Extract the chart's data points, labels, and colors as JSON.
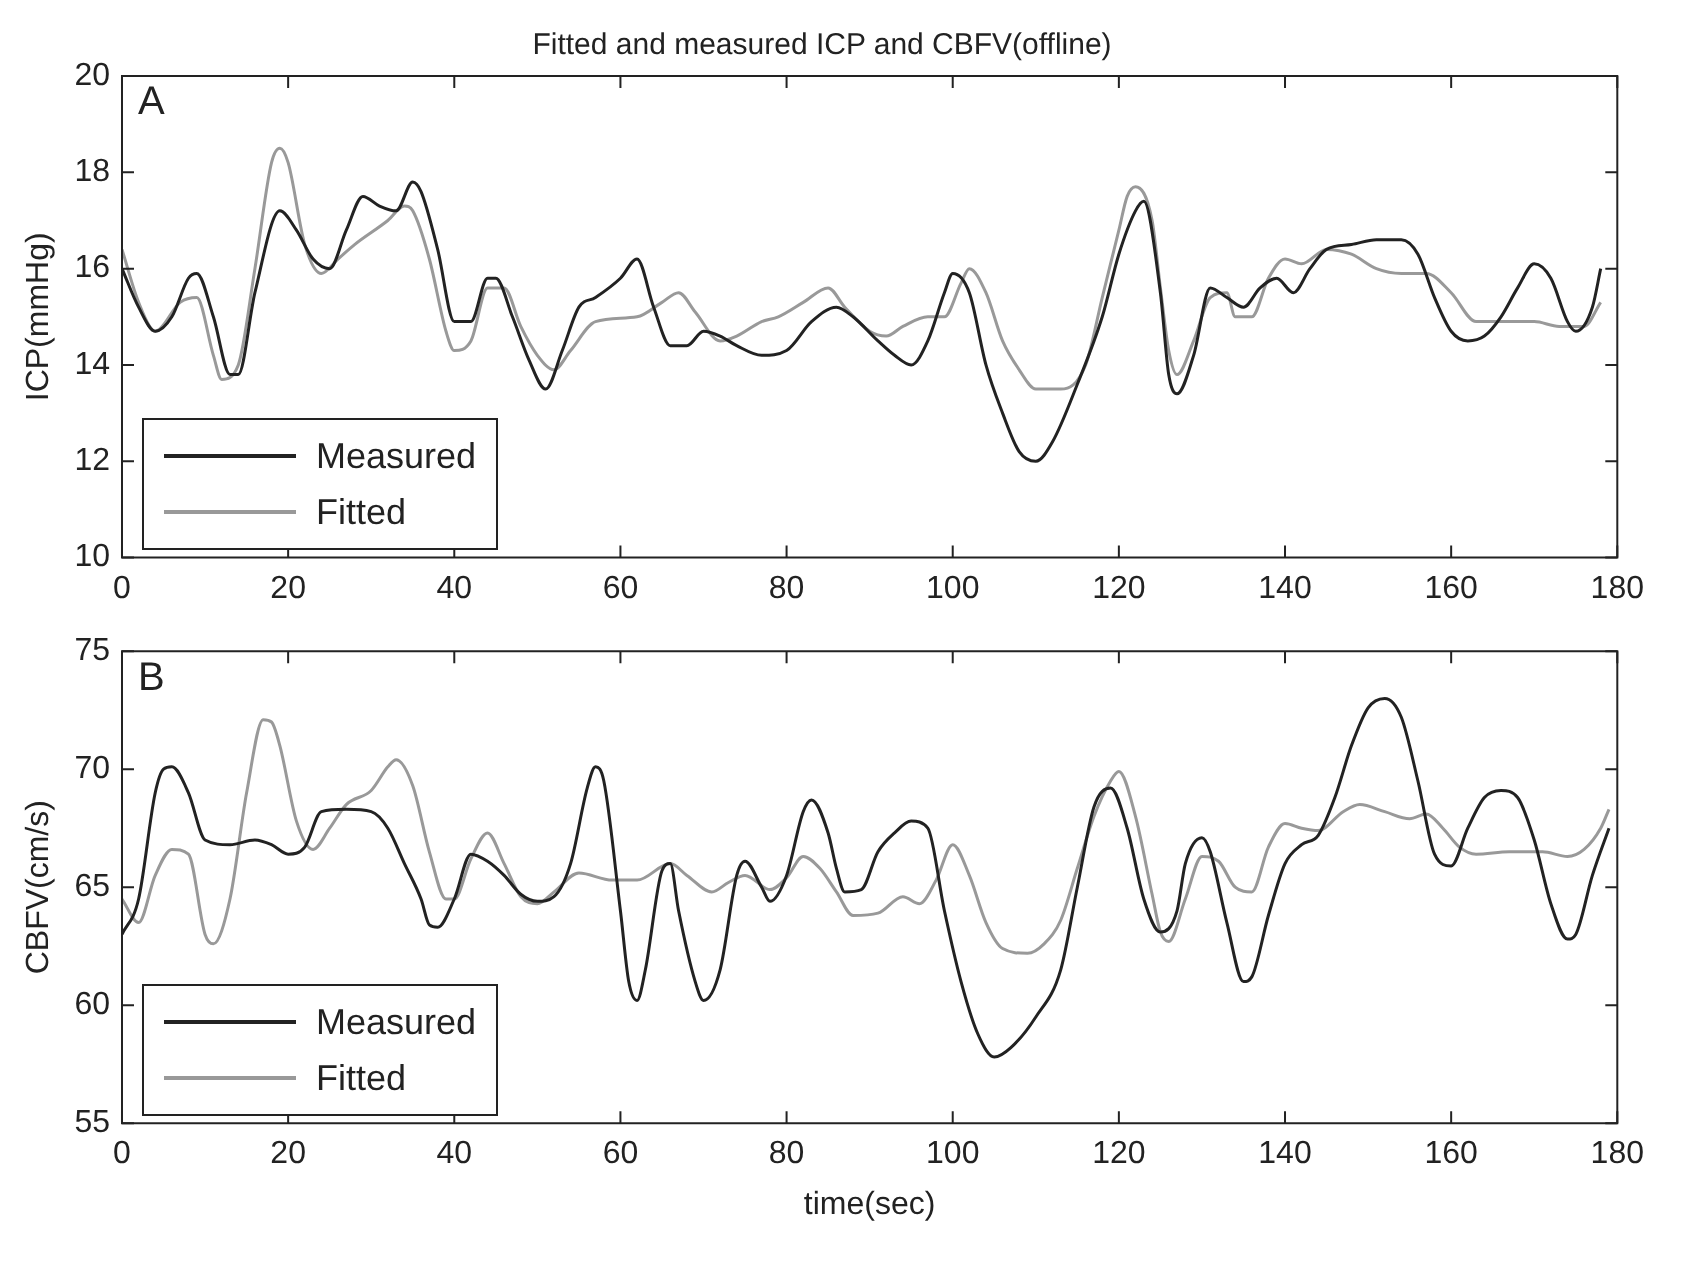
{
  "chart_data": [
    {
      "type": "line",
      "title": "Fitted and measured ICP and CBFV(offline)",
      "ylabel": "ICP(mmHg)",
      "annotations": [
        "A"
      ],
      "xlim": [
        0,
        180
      ],
      "xticks": [
        0,
        20,
        40,
        60,
        80,
        100,
        120,
        140,
        160,
        180
      ],
      "ylim": [
        10,
        20
      ],
      "yticks": [
        10,
        12,
        14,
        16,
        18,
        20
      ],
      "grid": false,
      "legend": "bottom left",
      "series": [
        {
          "name": "Measured",
          "color": "#222222",
          "x": [
            0,
            2,
            4,
            6,
            8,
            9,
            11,
            13,
            14,
            16,
            19,
            21,
            23,
            25,
            27,
            29,
            31,
            33,
            35,
            36,
            38,
            40,
            42,
            44,
            45,
            47,
            49,
            51,
            53,
            55,
            57,
            60,
            62,
            64,
            66,
            68,
            70,
            72,
            74,
            77,
            80,
            83,
            86,
            88,
            91,
            93,
            95,
            97,
            99,
            100,
            102,
            104,
            106,
            108,
            110,
            112,
            115,
            118,
            120,
            122,
            123,
            125,
            126,
            127,
            129,
            131,
            133,
            135,
            137,
            139,
            141,
            143,
            145,
            148,
            151,
            154,
            156,
            158,
            160,
            162,
            164,
            166,
            168,
            170,
            172,
            174,
            175,
            177,
            178
          ],
          "values": [
            16,
            15.2,
            14.7,
            15.0,
            15.8,
            15.9,
            15,
            13.8,
            13.8,
            15.5,
            17.2,
            16.8,
            16.2,
            16.0,
            16.8,
            17.5,
            17.3,
            17.2,
            17.8,
            17.6,
            16.4,
            14.9,
            14.9,
            15.8,
            15.8,
            15,
            14.1,
            13.5,
            14.3,
            15.2,
            15.4,
            15.8,
            16.2,
            15.2,
            14.4,
            14.4,
            14.7,
            14.6,
            14.4,
            14.2,
            14.3,
            14.9,
            15.2,
            15.0,
            14.5,
            14.2,
            14.0,
            14.5,
            15.5,
            15.9,
            15.5,
            14,
            13,
            12.2,
            12.0,
            12.4,
            13.6,
            15,
            16.3,
            17.2,
            17.4,
            15.5,
            13.8,
            13.4,
            14.2,
            15.6,
            15.4,
            15.2,
            15.6,
            15.8,
            15.5,
            16.0,
            16.4,
            16.5,
            16.6,
            16.6,
            16.3,
            15.4,
            14.7,
            14.5,
            14.6,
            15.0,
            15.6,
            16.1,
            15.8,
            14.9,
            14.7,
            15.2,
            16.0
          ]
        },
        {
          "name": "Fitted",
          "color": "#999999",
          "x": [
            0,
            2,
            4,
            7,
            9,
            11,
            12,
            14,
            16,
            18,
            19,
            20,
            22,
            24,
            26,
            28,
            32,
            34,
            35,
            37,
            39,
            40,
            42,
            44,
            46,
            48,
            50,
            52,
            54,
            57,
            62,
            65,
            67,
            69,
            72,
            74,
            77,
            79,
            82,
            85,
            87,
            90,
            92,
            94,
            97,
            99,
            101,
            102,
            104,
            106,
            108,
            110,
            113,
            116,
            118,
            120,
            121,
            122,
            124,
            125,
            126,
            127,
            129,
            131,
            133,
            134,
            136,
            138,
            140,
            142,
            145,
            148,
            151,
            154,
            157,
            160,
            163,
            166,
            170,
            173,
            176,
            178
          ],
          "values": [
            16.4,
            15.3,
            14.7,
            15.3,
            15.4,
            14.2,
            13.7,
            14,
            16,
            18.2,
            18.5,
            18.2,
            16.5,
            15.9,
            16.2,
            16.5,
            17,
            17.3,
            17.2,
            16.2,
            14.7,
            14.3,
            14.5,
            15.6,
            15.6,
            14.8,
            14.2,
            13.9,
            14.3,
            14.9,
            15.0,
            15.3,
            15.5,
            15.1,
            14.5,
            14.6,
            14.9,
            15.0,
            15.3,
            15.6,
            15.2,
            14.7,
            14.6,
            14.8,
            15.0,
            15.0,
            15.7,
            16.0,
            15.5,
            14.5,
            13.9,
            13.5,
            13.5,
            14,
            15.4,
            16.8,
            17.5,
            17.7,
            17.0,
            15.6,
            14.3,
            13.8,
            14.5,
            15.4,
            15.5,
            15,
            15.0,
            15.8,
            16.2,
            16.1,
            16.4,
            16.3,
            16.0,
            15.9,
            15.9,
            15.5,
            14.9,
            14.9,
            14.9,
            14.8,
            14.8,
            15.3
          ]
        }
      ]
    },
    {
      "type": "line",
      "xlabel": "time(sec)",
      "ylabel": "CBFV(cm/s)",
      "annotations": [
        "B"
      ],
      "xlim": [
        0,
        180
      ],
      "xticks": [
        0,
        20,
        40,
        60,
        80,
        100,
        120,
        140,
        160,
        180
      ],
      "ylim": [
        55,
        75
      ],
      "yticks": [
        55,
        60,
        65,
        70,
        75
      ],
      "grid": false,
      "legend": "bottom left",
      "series": [
        {
          "name": "Measured",
          "color": "#222222",
          "x": [
            0,
            2,
            4,
            5,
            6,
            8,
            10,
            13,
            16,
            18,
            20,
            22,
            24,
            27,
            30,
            32,
            34,
            36,
            37,
            38,
            40,
            42,
            44,
            46,
            48,
            50,
            52,
            54,
            56,
            57,
            58,
            60,
            61,
            62,
            63,
            65,
            66,
            67,
            69,
            70,
            72,
            74,
            75,
            77,
            78,
            80,
            82,
            83,
            85,
            86,
            87,
            89,
            91,
            93,
            95,
            97,
            99,
            101,
            103,
            105,
            107,
            110,
            113,
            115,
            117,
            119,
            121,
            123,
            125,
            127,
            128,
            130,
            131,
            133,
            135,
            136,
            138,
            140,
            142,
            144,
            146,
            148,
            150,
            152,
            154,
            156,
            158,
            160,
            162,
            164,
            166,
            168,
            170,
            172,
            174,
            175,
            177,
            179
          ],
          "values": [
            63,
            64.5,
            69,
            70,
            70.1,
            69,
            67,
            66.8,
            67,
            66.8,
            66.4,
            66.7,
            68.2,
            68.3,
            68.2,
            67.5,
            66,
            64.5,
            63.4,
            63.3,
            64.5,
            66.4,
            66.1,
            65.5,
            64.7,
            64.4,
            64.6,
            66,
            69.2,
            70.1,
            69.5,
            64,
            61,
            60.2,
            61.5,
            65.7,
            66,
            64,
            61,
            60.2,
            61.5,
            65.5,
            66.1,
            65,
            64.4,
            65.5,
            68.2,
            68.7,
            67.3,
            65.8,
            64.8,
            64.9,
            66.5,
            67.3,
            67.8,
            67.5,
            64,
            61,
            58.8,
            57.8,
            58.2,
            59.5,
            61.5,
            65,
            68.4,
            69.2,
            67.5,
            64.5,
            63.1,
            64,
            66,
            67.1,
            66.5,
            63.5,
            61,
            61.2,
            63.8,
            66,
            66.8,
            67.2,
            68.8,
            71,
            72.6,
            73,
            72.2,
            69.5,
            66.4,
            65.9,
            67.5,
            68.8,
            69.1,
            68.8,
            67,
            64.3,
            62.8,
            63,
            65.5,
            67.5
          ]
        },
        {
          "name": "Fitted",
          "color": "#999999",
          "x": [
            0,
            2,
            4,
            6,
            8,
            10,
            11,
            13,
            15,
            17,
            18,
            19,
            21,
            23,
            25,
            27,
            30,
            32,
            33,
            35,
            37,
            39,
            40,
            42,
            44,
            46,
            48,
            50,
            52,
            55,
            59,
            62,
            66,
            68,
            71,
            73,
            75,
            78,
            80,
            82,
            84,
            86,
            88,
            91,
            94,
            96,
            98,
            100,
            102,
            104,
            106,
            109,
            111,
            113,
            115,
            117,
            119,
            120,
            122,
            124,
            125,
            126,
            128,
            130,
            132,
            134,
            136,
            138,
            140,
            142,
            144,
            147,
            149,
            152,
            155,
            157,
            159,
            161,
            163,
            167,
            171,
            174,
            176,
            178,
            179
          ],
          "values": [
            64.5,
            63.5,
            65.5,
            66.6,
            66.4,
            63,
            62.6,
            64.5,
            69,
            72.1,
            72,
            71,
            67.8,
            66.6,
            67.5,
            68.5,
            69.1,
            70.1,
            70.4,
            69.3,
            66.5,
            64.5,
            64.5,
            66.2,
            67.3,
            66,
            64.6,
            64.3,
            64.8,
            65.6,
            65.3,
            65.3,
            66.0,
            65.5,
            64.8,
            65.2,
            65.5,
            64.9,
            65.4,
            66.3,
            65.8,
            64.8,
            63.8,
            63.9,
            64.6,
            64.3,
            65.3,
            66.8,
            65.5,
            63.5,
            62.4,
            62.2,
            62.6,
            63.6,
            65.8,
            68,
            69.5,
            69.9,
            68,
            64.7,
            63.1,
            62.7,
            64.5,
            66.3,
            66.1,
            65,
            64.8,
            66.7,
            67.7,
            67.5,
            67.4,
            68.2,
            68.5,
            68.2,
            67.9,
            68.1,
            67.5,
            66.7,
            66.4,
            66.5,
            66.5,
            66.3,
            66.6,
            67.5,
            68.3
          ]
        }
      ]
    }
  ]
}
